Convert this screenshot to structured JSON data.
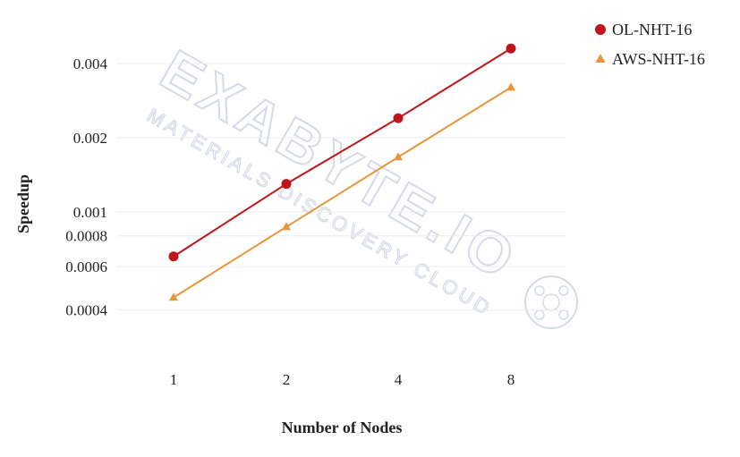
{
  "watermark": {
    "main": "EXABYTE.IO",
    "sub": "MATERIALS DISCOVERY CLOUD"
  },
  "chart_data": {
    "type": "line",
    "xlabel": "Number of Nodes",
    "ylabel": "Speedup",
    "x_scale": "log2",
    "y_scale": "log",
    "categories": [
      "1",
      "2",
      "4",
      "8"
    ],
    "x": [
      1,
      2,
      4,
      8
    ],
    "y_ticks": [
      0.0004,
      0.0006,
      0.0008,
      0.001,
      0.002,
      0.004
    ],
    "y_tick_labels": [
      "0.0004",
      "0.0006",
      "0.0008",
      "0.001",
      "0.002",
      "0.004"
    ],
    "ylim": [
      0.0003,
      0.0052
    ],
    "grid": true,
    "legend_position": "top-right",
    "series": [
      {
        "name": "OL-NHT-16",
        "marker": "circle",
        "color": "#c0141c",
        "values": [
          0.00066,
          0.0013,
          0.0024,
          0.0046
        ]
      },
      {
        "name": "AWS-NHT-16",
        "marker": "triangle",
        "color": "#e8963c",
        "values": [
          0.00045,
          0.00087,
          0.00167,
          0.0032
        ]
      }
    ]
  }
}
